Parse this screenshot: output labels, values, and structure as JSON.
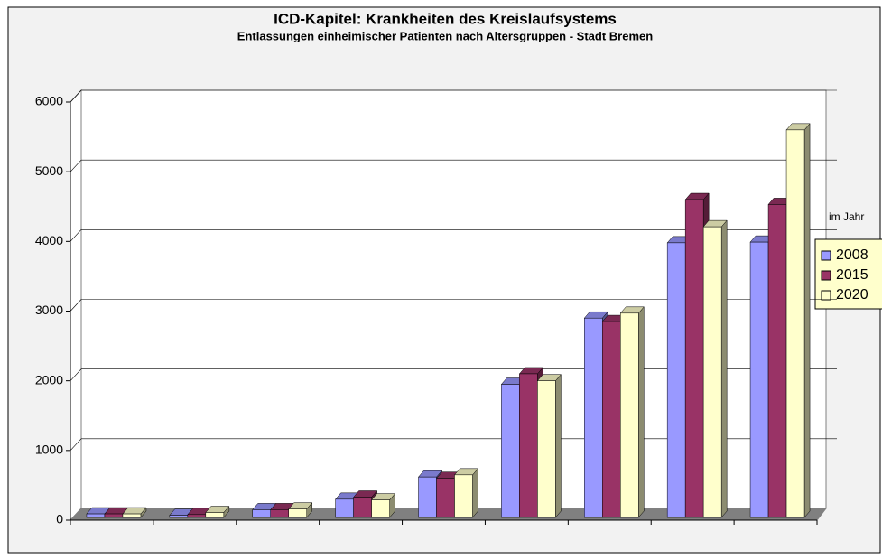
{
  "chart_data": {
    "type": "bar3d",
    "title": "ICD-Kapitel: Krankheiten des Kreislaufsystems",
    "subtitle": "Entlassungen einheimischer Patienten nach Altersgruppen - Stadt Bremen",
    "legend_title": "im Jahr",
    "categories": [
      null,
      null,
      null,
      null,
      null,
      null,
      null,
      null,
      null
    ],
    "series": [
      {
        "name": "2008",
        "color": "#9999ff",
        "values": [
          90,
          70,
          150,
          300,
          620,
          1950,
          2900,
          3980,
          3990
        ]
      },
      {
        "name": "2015",
        "color": "#993366",
        "values": [
          90,
          80,
          150,
          330,
          600,
          2100,
          2850,
          4600,
          4530
        ]
      },
      {
        "name": "2020",
        "color": "#ffffcc",
        "values": [
          90,
          110,
          160,
          290,
          650,
          2000,
          2970,
          4210,
          5600
        ]
      }
    ],
    "ylim": [
      0,
      6000
    ],
    "yticks": [
      0,
      1000,
      2000,
      3000,
      4000,
      5000,
      6000
    ],
    "grid": true,
    "legend": "right"
  }
}
